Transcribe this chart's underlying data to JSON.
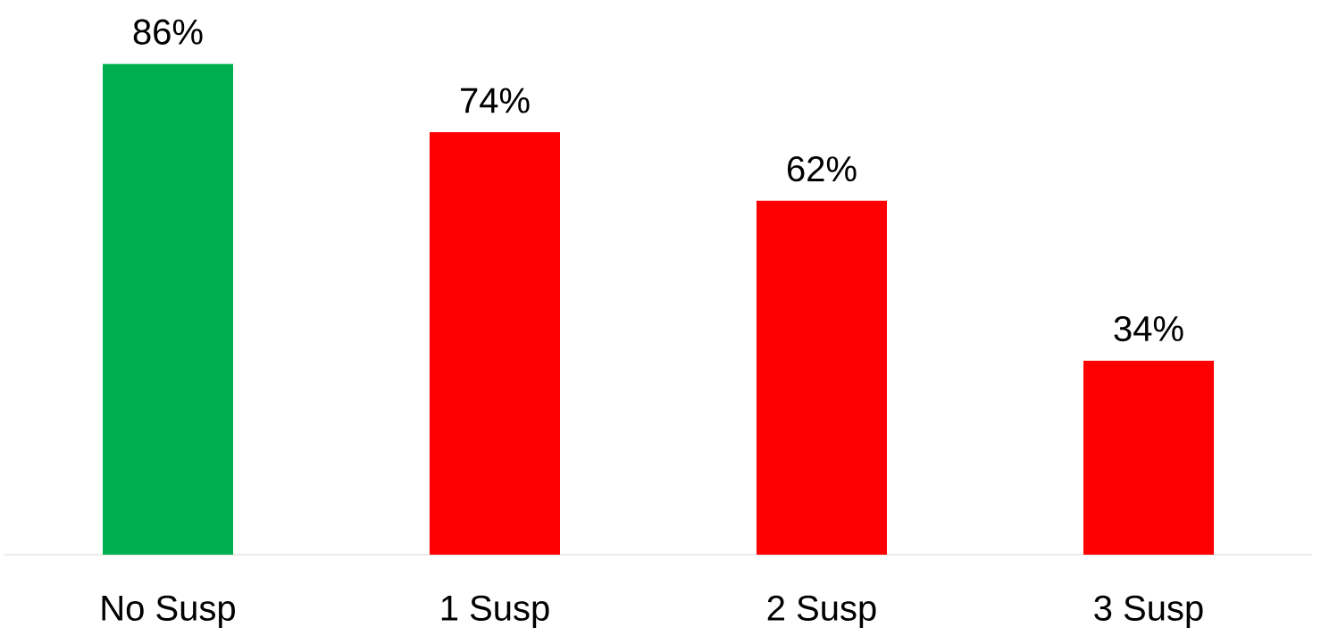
{
  "chart_data": {
    "type": "bar",
    "categories": [
      "No Susp",
      "1 Susp",
      "2 Susp",
      "3 Susp"
    ],
    "values": [
      86,
      74,
      62,
      34
    ],
    "colors": [
      "#00b050",
      "#ff0000",
      "#ff0000",
      "#ff0000"
    ],
    "value_labels": [
      "86%",
      "74%",
      "62%",
      "34%"
    ]
  }
}
